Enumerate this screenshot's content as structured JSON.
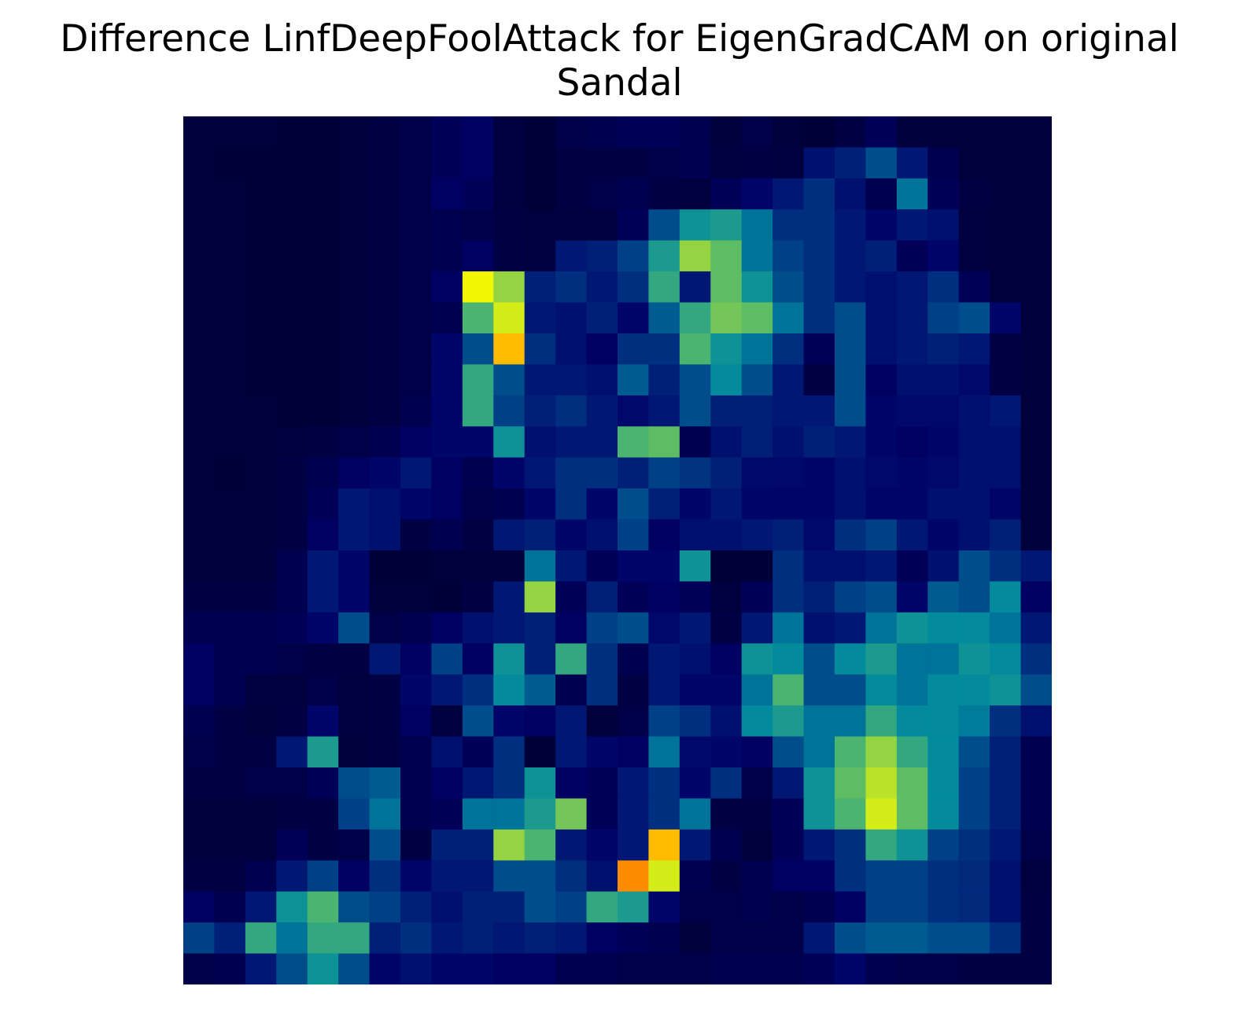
{
  "chart_data": {
    "type": "heatmap",
    "title_line1": "Difference LinfDeepFoolAttack for EigenGradCAM on original",
    "title_line2": "Sandal",
    "axes": "off",
    "colormap_overlay": "jet",
    "grid_rows": 28,
    "grid_cols": 28,
    "values": [
      [
        0.02,
        0.02,
        0.02,
        0.01,
        0.01,
        0.02,
        0.04,
        0.06,
        0.1,
        0.12,
        0.03,
        0.01,
        0.06,
        0.08,
        0.1,
        0.1,
        0.08,
        0.02,
        0.06,
        0.02,
        0.01,
        0.05,
        0.1,
        0.02,
        0.02,
        0.02,
        0.02,
        0.02
      ],
      [
        0.02,
        0.01,
        0.01,
        0.01,
        0.01,
        0.02,
        0.04,
        0.06,
        0.1,
        0.12,
        0.03,
        0.01,
        0.04,
        0.05,
        0.05,
        0.06,
        0.08,
        0.03,
        0.05,
        0.03,
        0.18,
        0.22,
        0.3,
        0.2,
        0.08,
        0.02,
        0.02,
        0.02
      ],
      [
        0.02,
        0.02,
        0.01,
        0.01,
        0.01,
        0.02,
        0.04,
        0.06,
        0.12,
        0.1,
        0.03,
        0.01,
        0.04,
        0.06,
        0.08,
        0.05,
        0.03,
        0.1,
        0.15,
        0.2,
        0.25,
        0.18,
        0.08,
        0.35,
        0.1,
        0.04,
        0.02,
        0.02
      ],
      [
        0.02,
        0.02,
        0.01,
        0.01,
        0.01,
        0.02,
        0.04,
        0.06,
        0.08,
        0.06,
        0.04,
        0.03,
        0.03,
        0.03,
        0.1,
        0.3,
        0.4,
        0.42,
        0.35,
        0.25,
        0.25,
        0.2,
        0.15,
        0.2,
        0.18,
        0.03,
        0.02,
        0.02
      ],
      [
        0.02,
        0.02,
        0.01,
        0.01,
        0.01,
        0.02,
        0.04,
        0.06,
        0.08,
        0.12,
        0.05,
        0.03,
        0.2,
        0.22,
        0.28,
        0.42,
        0.55,
        0.5,
        0.35,
        0.28,
        0.25,
        0.2,
        0.22,
        0.1,
        0.15,
        0.03,
        0.02,
        0.02
      ],
      [
        0.02,
        0.02,
        0.01,
        0.01,
        0.01,
        0.02,
        0.04,
        0.06,
        0.12,
        0.62,
        0.55,
        0.22,
        0.25,
        0.2,
        0.25,
        0.45,
        0.2,
        0.5,
        0.4,
        0.3,
        0.25,
        0.2,
        0.18,
        0.2,
        0.25,
        0.1,
        0.02,
        0.02
      ],
      [
        0.02,
        0.02,
        0.01,
        0.01,
        0.01,
        0.02,
        0.04,
        0.06,
        0.08,
        0.48,
        0.6,
        0.2,
        0.18,
        0.22,
        0.15,
        0.32,
        0.45,
        0.52,
        0.5,
        0.35,
        0.25,
        0.3,
        0.18,
        0.2,
        0.28,
        0.3,
        0.15,
        0.02
      ],
      [
        0.02,
        0.02,
        0.01,
        0.01,
        0.01,
        0.02,
        0.04,
        0.06,
        0.15,
        0.3,
        0.7,
        0.25,
        0.18,
        0.12,
        0.25,
        0.25,
        0.48,
        0.4,
        0.35,
        0.25,
        0.1,
        0.3,
        0.18,
        0.2,
        0.22,
        0.2,
        0.05,
        0.02
      ],
      [
        0.02,
        0.02,
        0.01,
        0.01,
        0.01,
        0.02,
        0.04,
        0.06,
        0.15,
        0.45,
        0.3,
        0.2,
        0.2,
        0.18,
        0.32,
        0.22,
        0.3,
        0.38,
        0.3,
        0.2,
        0.05,
        0.3,
        0.12,
        0.18,
        0.18,
        0.16,
        0.05,
        0.02
      ],
      [
        0.02,
        0.02,
        0.02,
        0.01,
        0.01,
        0.02,
        0.04,
        0.08,
        0.15,
        0.45,
        0.28,
        0.22,
        0.25,
        0.2,
        0.16,
        0.2,
        0.3,
        0.22,
        0.22,
        0.2,
        0.2,
        0.3,
        0.15,
        0.16,
        0.16,
        0.18,
        0.2,
        0.02
      ],
      [
        0.02,
        0.02,
        0.02,
        0.03,
        0.05,
        0.06,
        0.08,
        0.12,
        0.15,
        0.15,
        0.4,
        0.18,
        0.2,
        0.2,
        0.48,
        0.5,
        0.08,
        0.18,
        0.22,
        0.18,
        0.22,
        0.2,
        0.15,
        0.12,
        0.15,
        0.18,
        0.18,
        0.02
      ],
      [
        0.02,
        0.01,
        0.02,
        0.05,
        0.08,
        0.12,
        0.15,
        0.2,
        0.12,
        0.08,
        0.15,
        0.2,
        0.25,
        0.25,
        0.22,
        0.28,
        0.26,
        0.22,
        0.16,
        0.16,
        0.15,
        0.18,
        0.16,
        0.15,
        0.16,
        0.18,
        0.18,
        0.02
      ],
      [
        0.02,
        0.02,
        0.02,
        0.05,
        0.1,
        0.2,
        0.18,
        0.15,
        0.12,
        0.06,
        0.08,
        0.15,
        0.25,
        0.15,
        0.3,
        0.22,
        0.15,
        0.2,
        0.15,
        0.14,
        0.15,
        0.18,
        0.14,
        0.15,
        0.18,
        0.18,
        0.14,
        0.02
      ],
      [
        0.02,
        0.02,
        0.02,
        0.05,
        0.12,
        0.2,
        0.18,
        0.05,
        0.08,
        0.04,
        0.2,
        0.22,
        0.15,
        0.18,
        0.28,
        0.12,
        0.18,
        0.18,
        0.2,
        0.22,
        0.16,
        0.25,
        0.28,
        0.2,
        0.15,
        0.18,
        0.22,
        0.02
      ],
      [
        0.02,
        0.02,
        0.02,
        0.08,
        0.2,
        0.15,
        0.01,
        0.01,
        0.02,
        0.02,
        0.02,
        0.35,
        0.2,
        0.1,
        0.15,
        0.15,
        0.4,
        0.01,
        0.01,
        0.25,
        0.18,
        0.18,
        0.2,
        0.1,
        0.18,
        0.3,
        0.25,
        0.2
      ],
      [
        0.05,
        0.05,
        0.05,
        0.08,
        0.2,
        0.15,
        0.02,
        0.02,
        0.01,
        0.05,
        0.2,
        0.55,
        0.1,
        0.22,
        0.1,
        0.12,
        0.1,
        0.03,
        0.1,
        0.25,
        0.22,
        0.28,
        0.3,
        0.15,
        0.32,
        0.3,
        0.38,
        0.12
      ],
      [
        0.08,
        0.08,
        0.08,
        0.1,
        0.15,
        0.3,
        0.06,
        0.08,
        0.12,
        0.18,
        0.2,
        0.22,
        0.12,
        0.28,
        0.3,
        0.16,
        0.2,
        0.05,
        0.2,
        0.35,
        0.18,
        0.2,
        0.35,
        0.4,
        0.38,
        0.38,
        0.35,
        0.2
      ],
      [
        0.12,
        0.08,
        0.08,
        0.06,
        0.04,
        0.04,
        0.2,
        0.12,
        0.28,
        0.12,
        0.4,
        0.22,
        0.45,
        0.25,
        0.08,
        0.2,
        0.18,
        0.12,
        0.4,
        0.38,
        0.3,
        0.38,
        0.42,
        0.35,
        0.35,
        0.4,
        0.38,
        0.25
      ],
      [
        0.12,
        0.08,
        0.03,
        0.03,
        0.06,
        0.03,
        0.05,
        0.15,
        0.2,
        0.25,
        0.38,
        0.32,
        0.08,
        0.25,
        0.05,
        0.2,
        0.15,
        0.15,
        0.35,
        0.48,
        0.3,
        0.3,
        0.38,
        0.35,
        0.38,
        0.38,
        0.4,
        0.3
      ],
      [
        0.08,
        0.05,
        0.02,
        0.04,
        0.15,
        0.03,
        0.05,
        0.12,
        0.03,
        0.3,
        0.15,
        0.12,
        0.2,
        0.02,
        0.06,
        0.28,
        0.25,
        0.18,
        0.38,
        0.42,
        0.35,
        0.35,
        0.45,
        0.38,
        0.38,
        0.36,
        0.25,
        0.18
      ],
      [
        0.06,
        0.05,
        0.04,
        0.2,
        0.42,
        0.02,
        0.05,
        0.08,
        0.18,
        0.1,
        0.25,
        0.01,
        0.2,
        0.15,
        0.12,
        0.35,
        0.16,
        0.15,
        0.12,
        0.3,
        0.35,
        0.48,
        0.55,
        0.45,
        0.38,
        0.3,
        0.22,
        0.08
      ],
      [
        0.04,
        0.04,
        0.06,
        0.06,
        0.1,
        0.3,
        0.32,
        0.08,
        0.12,
        0.2,
        0.25,
        0.4,
        0.12,
        0.1,
        0.2,
        0.25,
        0.15,
        0.25,
        0.06,
        0.2,
        0.4,
        0.5,
        0.58,
        0.5,
        0.38,
        0.28,
        0.22,
        0.08
      ],
      [
        0.02,
        0.02,
        0.02,
        0.04,
        0.05,
        0.28,
        0.35,
        0.08,
        0.1,
        0.35,
        0.35,
        0.42,
        0.52,
        0.1,
        0.2,
        0.25,
        0.35,
        0.05,
        0.05,
        0.1,
        0.4,
        0.48,
        0.6,
        0.5,
        0.38,
        0.28,
        0.22,
        0.08
      ],
      [
        0.02,
        0.02,
        0.02,
        0.1,
        0.05,
        0.06,
        0.3,
        0.05,
        0.22,
        0.22,
        0.55,
        0.48,
        0.2,
        0.15,
        0.2,
        0.7,
        0.2,
        0.08,
        0.02,
        0.1,
        0.2,
        0.25,
        0.45,
        0.4,
        0.28,
        0.25,
        0.2,
        0.06
      ],
      [
        0.04,
        0.04,
        0.08,
        0.2,
        0.28,
        0.12,
        0.25,
        0.15,
        0.2,
        0.2,
        0.3,
        0.3,
        0.25,
        0.18,
        0.75,
        0.6,
        0.08,
        0.05,
        0.08,
        0.12,
        0.12,
        0.25,
        0.28,
        0.28,
        0.25,
        0.24,
        0.18,
        0.03
      ],
      [
        0.12,
        0.08,
        0.2,
        0.4,
        0.48,
        0.3,
        0.28,
        0.22,
        0.18,
        0.22,
        0.22,
        0.3,
        0.28,
        0.45,
        0.42,
        0.15,
        0.06,
        0.06,
        0.08,
        0.06,
        0.08,
        0.12,
        0.28,
        0.28,
        0.25,
        0.24,
        0.18,
        0.04
      ],
      [
        0.28,
        0.22,
        0.45,
        0.35,
        0.45,
        0.45,
        0.22,
        0.25,
        0.2,
        0.22,
        0.2,
        0.22,
        0.2,
        0.12,
        0.1,
        0.08,
        0.02,
        0.06,
        0.06,
        0.06,
        0.2,
        0.3,
        0.32,
        0.32,
        0.3,
        0.3,
        0.25,
        0.05
      ],
      [
        0.06,
        0.08,
        0.2,
        0.3,
        0.4,
        0.3,
        0.15,
        0.18,
        0.15,
        0.15,
        0.12,
        0.12,
        0.08,
        0.08,
        0.06,
        0.06,
        0.06,
        0.08,
        0.08,
        0.08,
        0.1,
        0.15,
        0.08,
        0.06,
        0.06,
        0.05,
        0.05,
        0.05
      ]
    ]
  }
}
